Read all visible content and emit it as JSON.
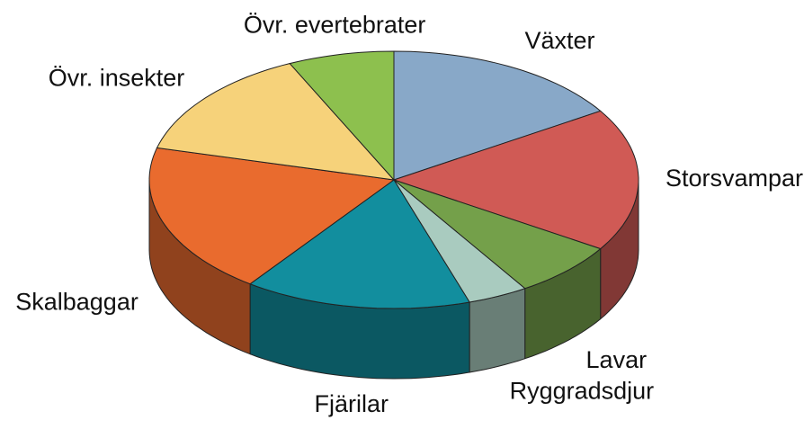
{
  "chart_data": {
    "type": "pie",
    "categories": [
      "Växter",
      "Storsvampar",
      "Lavar",
      "Ryggradsdjur",
      "Fjärilar",
      "Skalbaggar",
      "Övr. insekter",
      "Övr. evertebrater"
    ],
    "values": [
      16,
      18,
      7,
      4,
      15,
      19,
      14,
      7
    ],
    "colors": [
      "#88a8c8",
      "#d05a55",
      "#74a04a",
      "#a9cbbf",
      "#128e9e",
      "#e96b2e",
      "#f6d27a",
      "#8dc04e"
    ]
  }
}
